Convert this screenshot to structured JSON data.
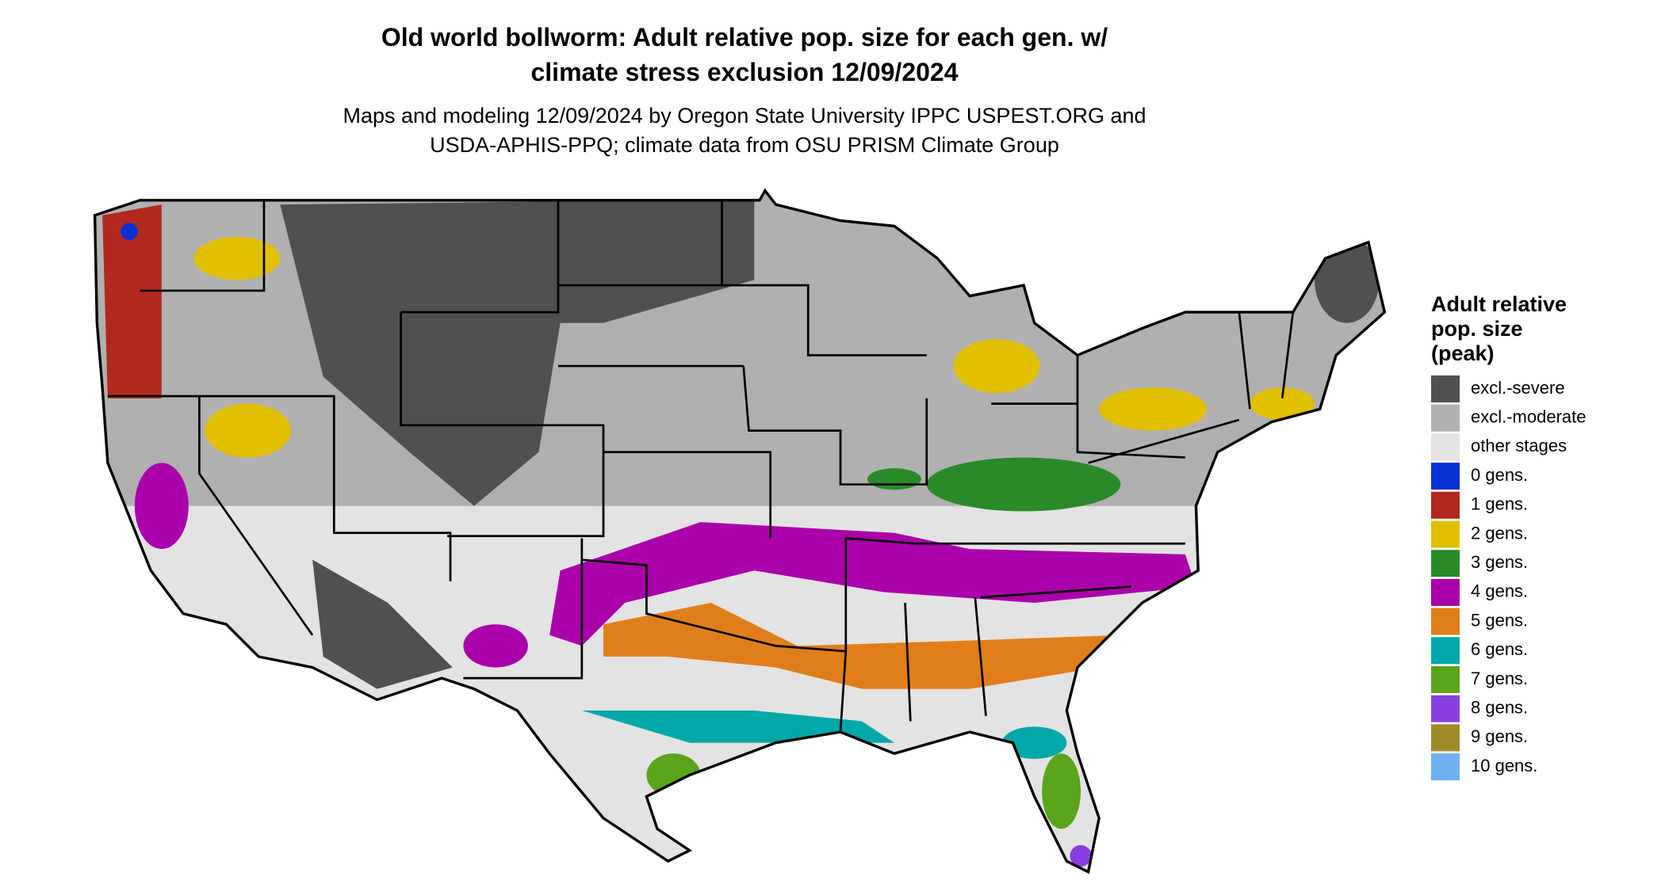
{
  "header": {
    "title_lines": [
      "Old world bollworm: Adult relative pop. size for each gen. w/",
      "climate stress exclusion 12/09/2024"
    ],
    "subtitle_lines": [
      "Maps and modeling 12/09/2024 by Oregon State University IPPC USPEST.ORG and",
      "USDA-APHIS-PPQ; climate data from OSU PRISM Climate Group"
    ]
  },
  "legend": {
    "title_lines": [
      "Adult relative",
      "pop. size",
      "(peak)"
    ],
    "items": [
      {
        "label": "excl.-severe",
        "color": "#505050"
      },
      {
        "label": "excl.-moderate",
        "color": "#b0b0b0"
      },
      {
        "label": "other stages",
        "color": "#e3e3e3"
      },
      {
        "label": "0 gens.",
        "color": "#0a32d2"
      },
      {
        "label": "1 gens.",
        "color": "#b0281e"
      },
      {
        "label": "2 gens.",
        "color": "#e0c000"
      },
      {
        "label": "3 gens.",
        "color": "#2a8a2a"
      },
      {
        "label": "4 gens.",
        "color": "#aa00aa"
      },
      {
        "label": "5 gens.",
        "color": "#e07f1a"
      },
      {
        "label": "6 gens.",
        "color": "#00a8a8"
      },
      {
        "label": "7 gens.",
        "color": "#5aa51a"
      },
      {
        "label": "8 gens.",
        "color": "#8a40e0"
      },
      {
        "label": "9 gens.",
        "color": "#a08a2a"
      },
      {
        "label": "10 gens.",
        "color": "#70b0f0"
      }
    ]
  }
}
